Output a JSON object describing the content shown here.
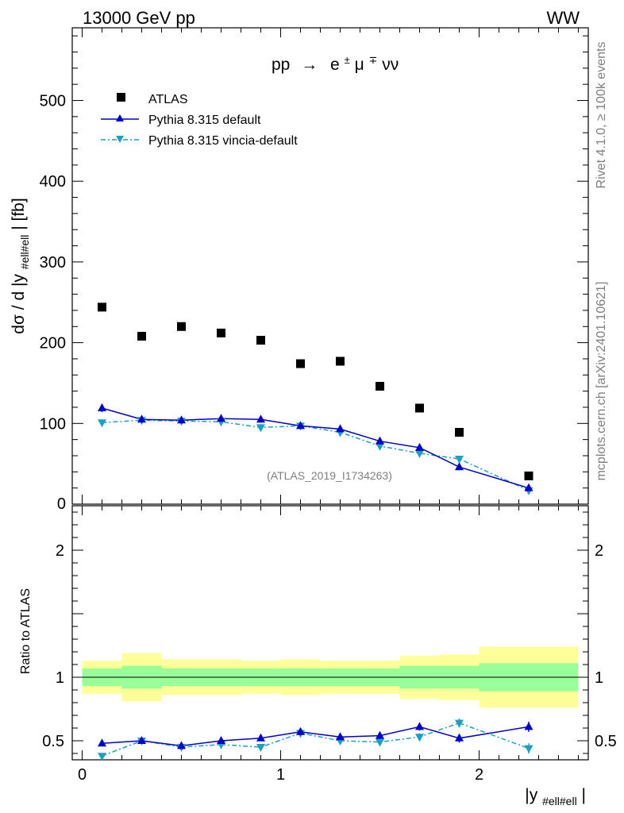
{
  "header": {
    "energy_label": "13000 GeV pp",
    "process_tag": "WW"
  },
  "side_labels": {
    "rivet": "Rivet 4.1.0, ≥ 100k events",
    "mcplots": "mcplots.cern.ch [arXiv:2401.10621]"
  },
  "watermark": "(ATLAS_2019_I1734263)",
  "colors": {
    "atlas": "#000000",
    "pythia_default": "#0000cc",
    "pythia_vincia": "#1aa0c4",
    "band_outer": "#ffff99",
    "band_inner": "#99ff99"
  },
  "chart_data": [
    {
      "type": "scatter",
      "panel": "main",
      "title": "pp → e±μ∓νν",
      "title_parts": {
        "pp": "pp",
        "arrow": "→",
        "e": "e",
        "pm": "±",
        "mu": "μ",
        "mp": "∓",
        "nunu": "νν"
      },
      "ylabel": {
        "main": "dσ / d |y",
        "sub": "#ell#ell",
        "tail": "| [fb]"
      },
      "xlim": [
        -0.05,
        2.55
      ],
      "ylim": [
        0,
        590
      ],
      "yticks": [
        100,
        200,
        300,
        400,
        500
      ],
      "ytick_labels": [
        "100",
        "200",
        "300",
        "400",
        "500"
      ],
      "ylabel_zero": "0",
      "legend_position": "top-left",
      "series": [
        {
          "name": "ATLAS",
          "style": "square",
          "x": [
            0.1,
            0.3,
            0.5,
            0.7,
            0.9,
            1.1,
            1.3,
            1.5,
            1.7,
            1.9,
            2.25
          ],
          "values": [
            244,
            208,
            220,
            212,
            203,
            174,
            177,
            146,
            119,
            89,
            35
          ]
        },
        {
          "name": "Pythia 8.315 default",
          "style": "line-triangle-up",
          "x": [
            0.1,
            0.3,
            0.5,
            0.7,
            0.9,
            1.1,
            1.3,
            1.5,
            1.7,
            1.9,
            2.25
          ],
          "values": [
            119,
            105,
            104,
            106,
            105,
            97,
            93,
            78,
            70,
            46,
            20
          ],
          "errors": [
            5,
            4,
            4,
            4,
            4,
            4,
            4,
            3,
            3,
            3,
            2
          ]
        },
        {
          "name": "Pythia 8.315 vincia-default",
          "style": "dashdot-triangle-down",
          "x": [
            0.1,
            0.3,
            0.5,
            0.7,
            0.9,
            1.1,
            1.3,
            1.5,
            1.7,
            1.9,
            2.25
          ],
          "values": [
            101,
            104,
            103,
            102,
            95,
            97,
            89,
            72,
            63,
            56,
            17
          ],
          "errors": [
            4,
            4,
            4,
            4,
            4,
            4,
            4,
            3,
            3,
            3,
            2
          ]
        }
      ]
    },
    {
      "type": "scatter",
      "panel": "ratio",
      "ylabel": "Ratio to ATLAS",
      "xlabel": {
        "main": "|y",
        "sub": "#ell#ell",
        "tail": "|"
      },
      "xlim": [
        -0.05,
        2.55
      ],
      "ylim": [
        0.35,
        2.35
      ],
      "xticks": [
        0,
        1,
        2
      ],
      "xtick_labels": [
        "0",
        "1",
        "2"
      ],
      "yticks": [
        0.5,
        1,
        2
      ],
      "ytick_labels": [
        "0.5",
        "1",
        "2"
      ],
      "bands": {
        "x_edges": [
          0.0,
          0.2,
          0.4,
          0.6,
          0.8,
          1.0,
          1.2,
          1.4,
          1.6,
          1.8,
          2.0,
          2.5
        ],
        "outer_low": [
          0.87,
          0.81,
          0.86,
          0.86,
          0.87,
          0.86,
          0.87,
          0.87,
          0.83,
          0.82,
          0.76
        ],
        "outer_high": [
          1.13,
          1.19,
          1.14,
          1.14,
          1.13,
          1.14,
          1.13,
          1.13,
          1.17,
          1.18,
          1.24
        ],
        "inner_low": [
          0.93,
          0.91,
          0.93,
          0.93,
          0.93,
          0.93,
          0.93,
          0.93,
          0.91,
          0.91,
          0.89
        ],
        "inner_high": [
          1.07,
          1.09,
          1.07,
          1.07,
          1.07,
          1.07,
          1.07,
          1.07,
          1.09,
          1.09,
          1.11
        ]
      },
      "series": [
        {
          "name": "Pythia 8.315 default",
          "x": [
            0.1,
            0.3,
            0.5,
            0.7,
            0.9,
            1.1,
            1.3,
            1.5,
            1.7,
            1.9,
            2.25
          ],
          "values": [
            0.48,
            0.5,
            0.46,
            0.5,
            0.52,
            0.57,
            0.53,
            0.54,
            0.61,
            0.52,
            0.61
          ],
          "errors": [
            0.02,
            0.02,
            0.02,
            0.02,
            0.02,
            0.025,
            0.025,
            0.025,
            0.03,
            0.035,
            0.04
          ]
        },
        {
          "name": "Pythia 8.315 vincia-default",
          "x": [
            0.1,
            0.3,
            0.5,
            0.7,
            0.9,
            1.1,
            1.3,
            1.5,
            1.7,
            1.9,
            2.25
          ],
          "values": [
            0.38,
            0.5,
            0.45,
            0.47,
            0.45,
            0.56,
            0.5,
            0.49,
            0.53,
            0.64,
            0.44
          ],
          "errors": [
            0.02,
            0.025,
            0.02,
            0.02,
            0.02,
            0.025,
            0.025,
            0.025,
            0.03,
            0.035,
            0.04
          ]
        }
      ]
    }
  ]
}
